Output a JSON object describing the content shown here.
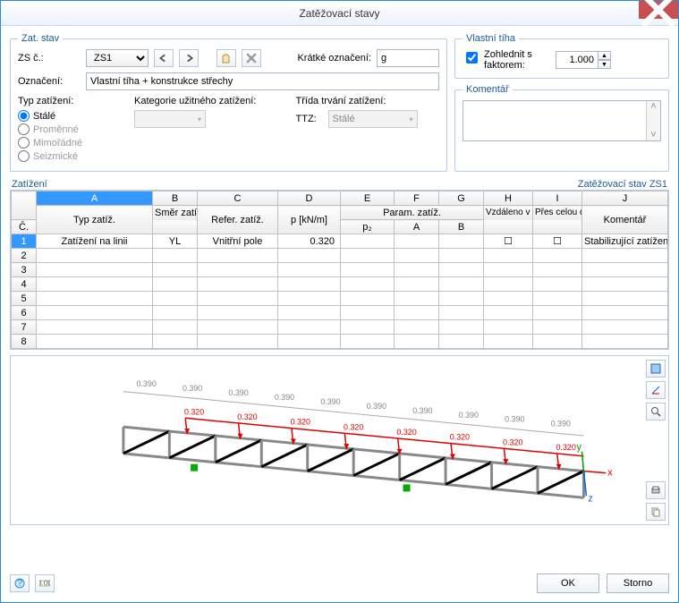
{
  "window": {
    "title": "Zatěžovací stavy"
  },
  "zatstav": {
    "legend": "Zat. stav",
    "zsc_label": "ZS č.:",
    "zsc_value": "ZS1",
    "kratke_label": "Krátké označení:",
    "kratke_value": "g",
    "oznaceni_label": "Označení:",
    "oznaceni_value": "Vlastní tíha + konstrukce střechy",
    "typ_label": "Typ zatížení:",
    "kategorie_label": "Kategorie užitného zatížení:",
    "trida_label": "Třída trvání zatížení:",
    "ttz_label": "TTZ:",
    "ttz_value": "Stálé",
    "radios": [
      "Stálé",
      "Proměnné",
      "Mimořádné",
      "Seizmické"
    ],
    "selected_radio": 0
  },
  "vlastni": {
    "legend": "Vlastní tíha",
    "chk_label": "Zohlednit s faktorem:",
    "chk_checked": true,
    "factor": "1.000"
  },
  "komentar": {
    "legend": "Komentář"
  },
  "zatizeni": {
    "left": "Zatížení",
    "right": "Zatěžovací stav ZS1",
    "cols": [
      "A",
      "B",
      "C",
      "D",
      "E",
      "F",
      "G",
      "H",
      "I",
      "J"
    ],
    "h_c": "Č.",
    "h_typ": "Typ zatíž.",
    "h_smer": "Směr zatíž.",
    "h_refer": "Refer. zatíž.",
    "h_p": "p [kN/m]",
    "h_param": "Param. zatíž.",
    "h_p2": "p₂",
    "h_A": "A",
    "h_B": "B",
    "h_vzd": "Vzdáleno v %",
    "h_pres": "Přes celou délku",
    "h_kom": "Komentář",
    "row": {
      "n": "1",
      "typ": "Zatížení na linii",
      "smer": "YL",
      "refer": "Vnitřní pole",
      "p": "0.320",
      "kom": "Stabilizující zatížen"
    }
  },
  "diagram": {
    "dims": [
      "0.390",
      "0.390",
      "0.390",
      "0.390",
      "0.390",
      "0.390",
      "0.390",
      "0.390",
      "0.390",
      "0.390"
    ],
    "loads": [
      "0.320",
      "0.320",
      "0.320",
      "0.320",
      "0.320",
      "0.320",
      "0.320",
      "0.320"
    ]
  },
  "footer": {
    "ok": "OK",
    "storno": "Storno"
  }
}
